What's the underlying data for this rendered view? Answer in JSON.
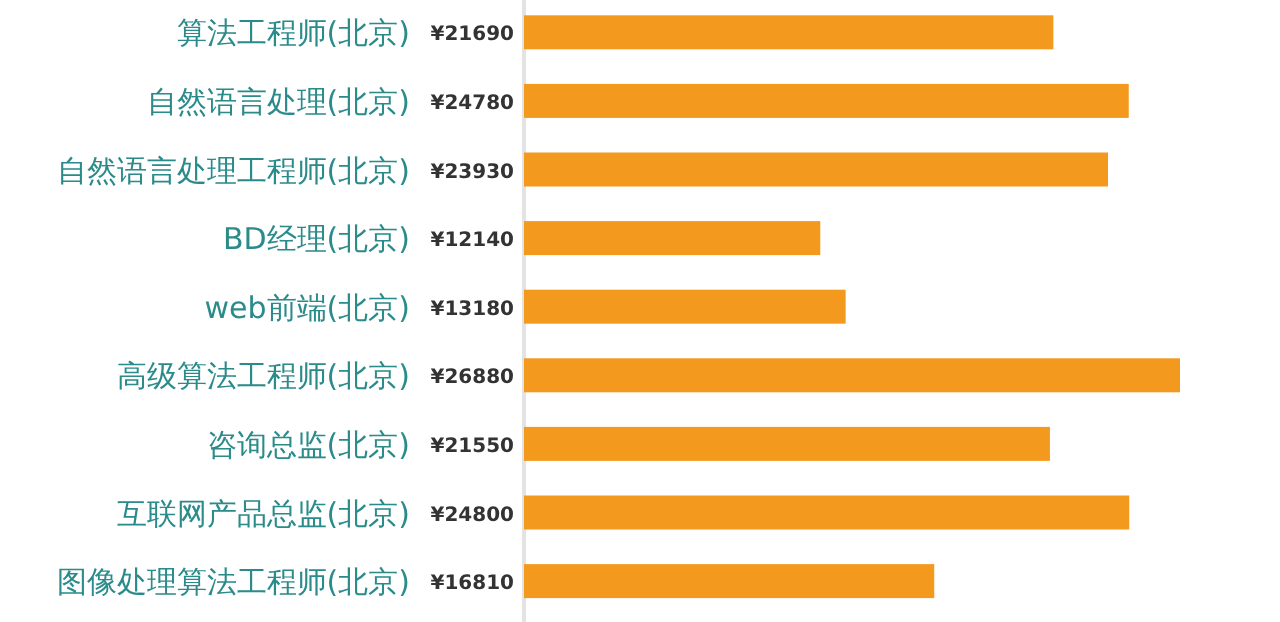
{
  "chart_data": {
    "type": "bar",
    "orientation": "horizontal",
    "categories": [
      "算法工程师(北京)",
      "自然语言处理(北京)",
      "自然语言处理工程师(北京)",
      "BD经理(北京)",
      "web前端(北京)",
      "高级算法工程师(北京)",
      "咨询总监(北京)",
      "互联网产品总监(北京)",
      "图像处理算法工程师(北京)"
    ],
    "values": [
      21690,
      24780,
      23930,
      12140,
      13180,
      26880,
      21550,
      24800,
      16810
    ],
    "value_labels": [
      "¥21690",
      "¥24780",
      "¥23930",
      "¥12140",
      "¥13180",
      "¥26880",
      "¥21550",
      "¥24800",
      "¥16810"
    ],
    "color": "#f39a1e"
  }
}
